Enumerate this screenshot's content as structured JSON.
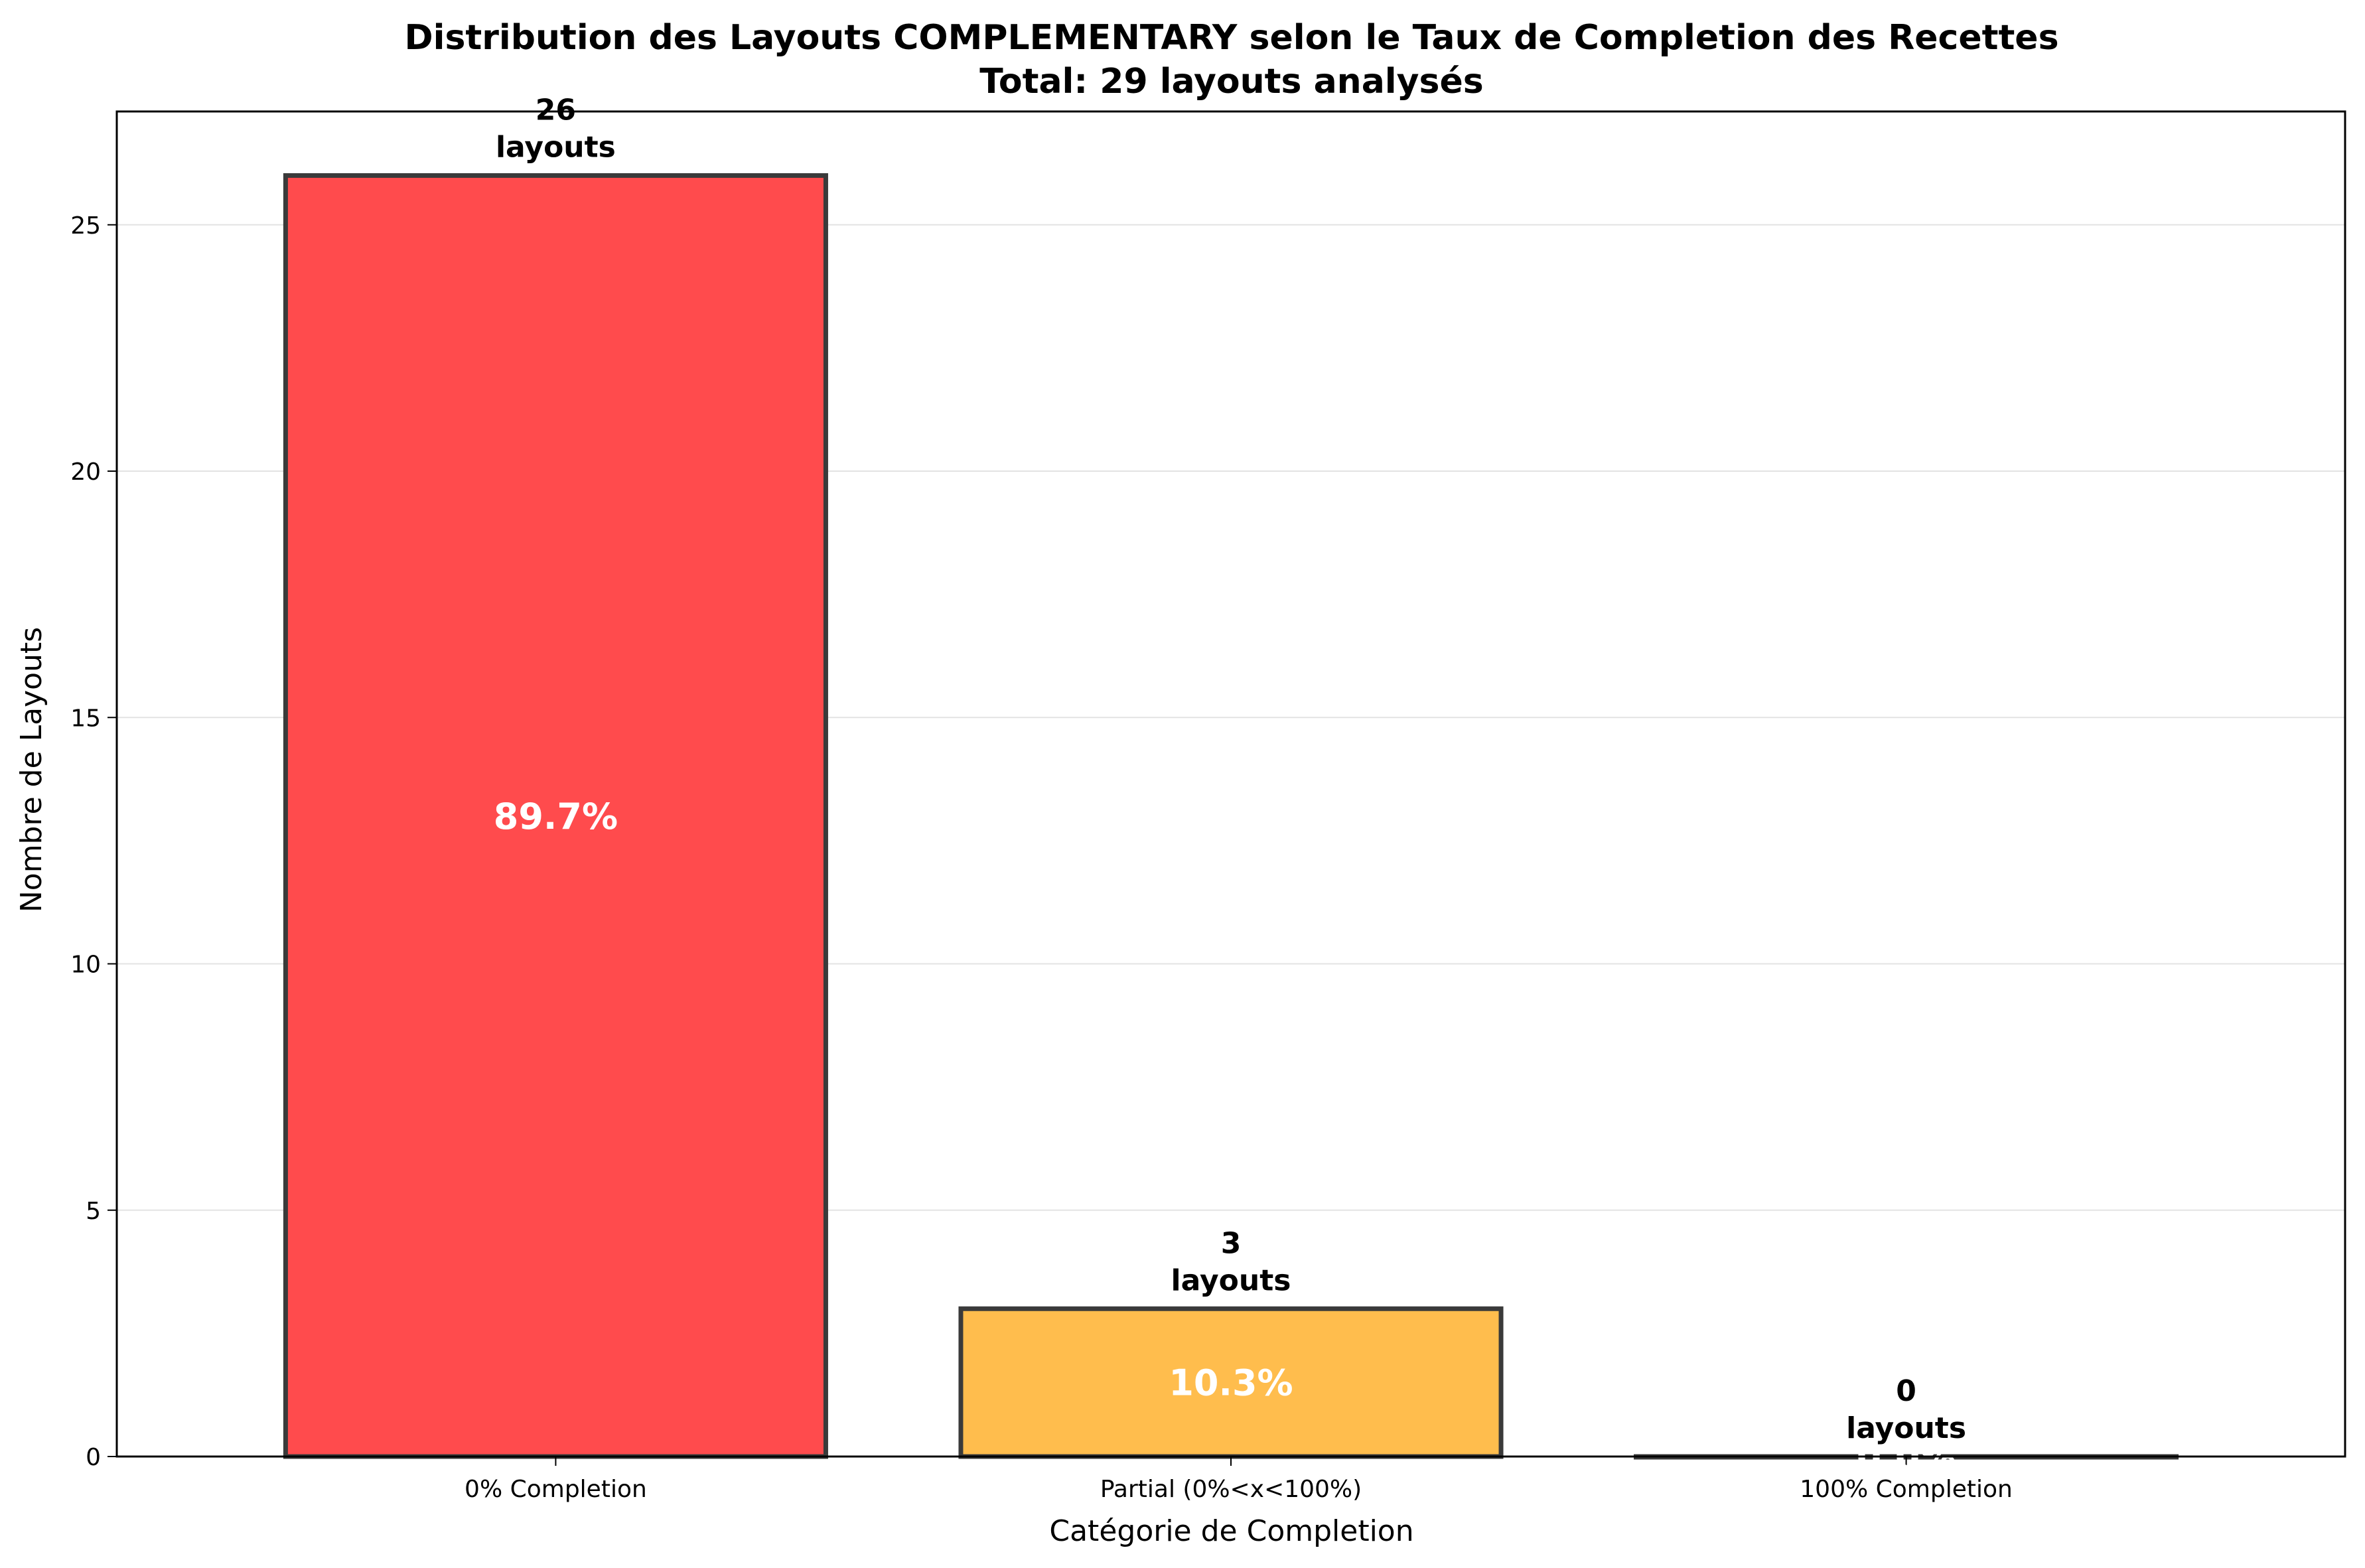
{
  "chart_data": {
    "type": "bar",
    "title": "Distribution des Layouts COMPLEMENTARY selon le Taux de Completion des Recettes",
    "subtitle": "Total: 29 layouts analysés",
    "xlabel": "Catégorie de Completion",
    "ylabel": "Nombre de Layouts",
    "categories": [
      "0% Completion",
      "Partial (0%<x<100%)",
      "100% Completion"
    ],
    "values": [
      26,
      3,
      0
    ],
    "count_labels": [
      {
        "count": "26",
        "unit": "layouts"
      },
      {
        "count": "3",
        "unit": "layouts"
      },
      {
        "count": "0",
        "unit": "layouts"
      }
    ],
    "percent_labels": [
      "89.7%",
      "10.3%",
      "0.0%"
    ],
    "colors": [
      "#ff4b4d",
      "#ffbd4d",
      "#4fd14f"
    ],
    "edge_color": "#3a3a3a",
    "ylim": [
      0,
      27.3
    ],
    "yticks": [
      0,
      5,
      10,
      15,
      20,
      25
    ],
    "grid": "horizontal",
    "legend": "none"
  }
}
